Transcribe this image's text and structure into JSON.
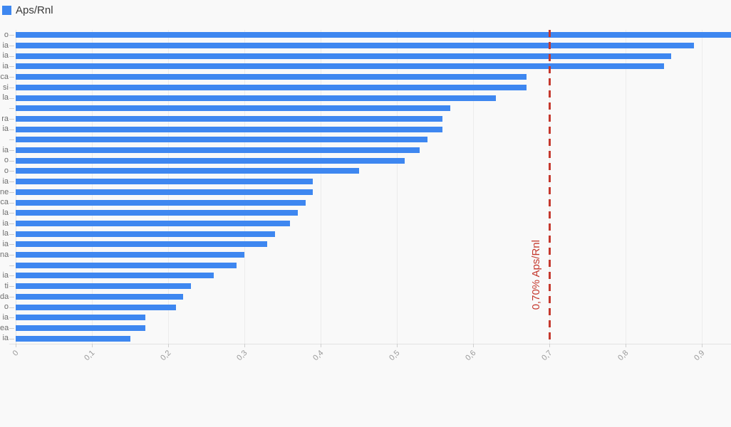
{
  "legend": {
    "label": "Aps/Rnl",
    "color": "#3e87f0"
  },
  "annotation": {
    "label": "0,70% Aps/Rnl",
    "value": 0.7,
    "color": "#c5392e",
    "style": "dashed"
  },
  "chart_data": {
    "type": "bar",
    "orientation": "horizontal",
    "title": "",
    "xlabel": "",
    "ylabel": "",
    "series_name": "Aps/Rnl",
    "bar_color": "#3e87f0",
    "grid": true,
    "legend_position": "top-left",
    "xlim": [
      0,
      0.94
    ],
    "x_ticks": [
      "0",
      "0,1",
      "0,2",
      "0,3",
      "0,4",
      "0,5",
      "0,6",
      "0,7",
      "0,8",
      "0,9"
    ],
    "x_tick_values": [
      0,
      0.1,
      0.2,
      0.3,
      0.4,
      0.5,
      0.6,
      0.7,
      0.8,
      0.9
    ],
    "categories_note": "category labels clipped at left edge of screenshot; only trailing letters visible",
    "categories": [
      "o",
      "ia",
      "ia",
      "ia",
      "ca",
      "si",
      "la",
      "",
      "ra",
      "ia",
      "",
      "ia",
      "o",
      "o",
      "ia",
      "ne",
      "ca",
      "la",
      "ia",
      "la",
      "ia",
      "na",
      "",
      "ia",
      "ti",
      "da",
      "o",
      "ia",
      "ea",
      "ia"
    ],
    "values": [
      0.95,
      0.89,
      0.86,
      0.85,
      0.67,
      0.67,
      0.63,
      0.57,
      0.56,
      0.56,
      0.54,
      0.53,
      0.51,
      0.45,
      0.39,
      0.39,
      0.38,
      0.37,
      0.36,
      0.34,
      0.33,
      0.3,
      0.29,
      0.26,
      0.23,
      0.22,
      0.21,
      0.17,
      0.17,
      0.15
    ],
    "first_bar_clipped_at_right_edge": true,
    "threshold": {
      "label": "0,70% Aps/Rnl",
      "value": 0.7
    }
  }
}
